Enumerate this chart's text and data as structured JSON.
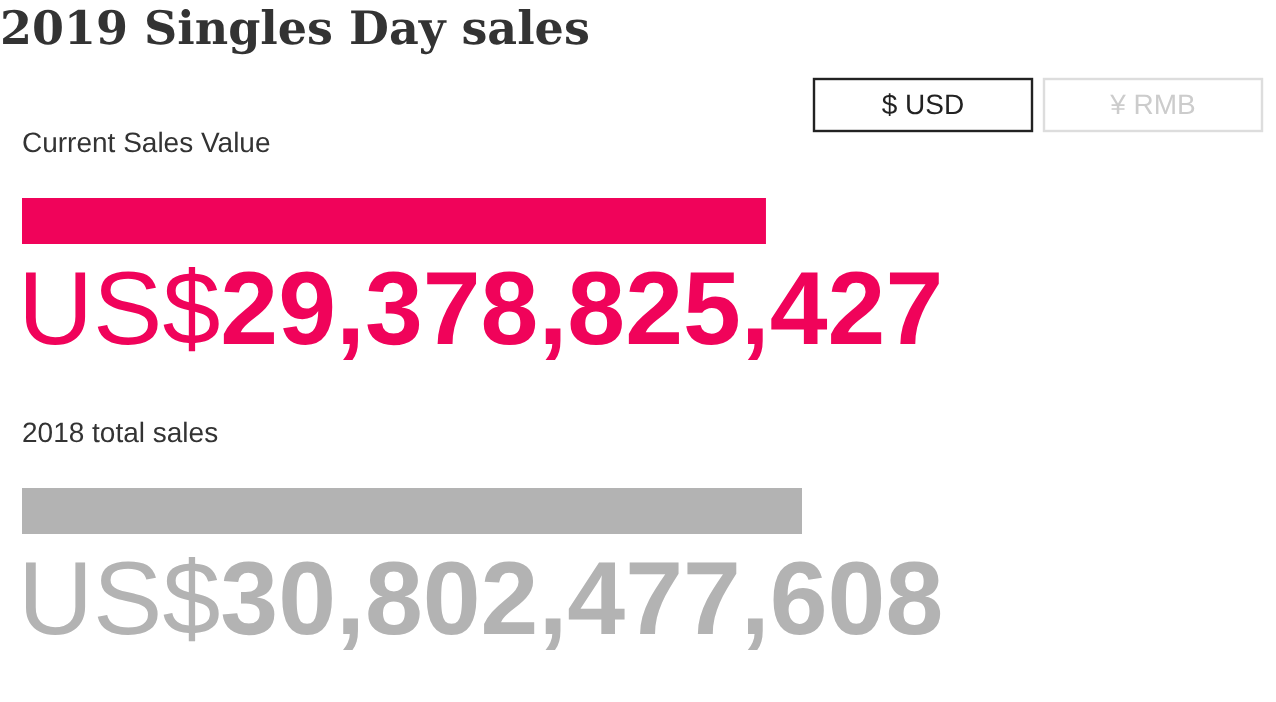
{
  "chart_data": {
    "type": "bar",
    "orientation": "horizontal",
    "title": "2019 Singles Day sales",
    "categories": [
      "Current Sales Value",
      "2018 total sales"
    ],
    "values": [
      29378825427,
      30802477608
    ],
    "colors": [
      "#f0035a",
      "#b3b3b3"
    ],
    "value_labels": [
      "US$29,378,825,427",
      "US$30,802,477,608"
    ],
    "annotations": [
      "$ USD",
      "¥ RMB"
    ]
  }
}
